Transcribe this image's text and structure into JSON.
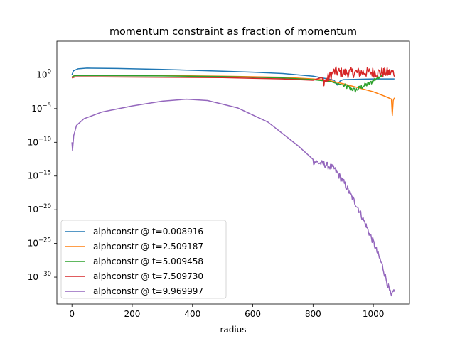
{
  "chart_data": {
    "type": "line",
    "title": "momentum constraint as fraction of momentum",
    "xlabel": "radius",
    "ylabel": "",
    "xlim": [
      -50,
      1120
    ],
    "ylim_log10": [
      -34,
      5
    ],
    "yscale": "log",
    "grid": false,
    "legend_position": "lower-left",
    "x_ticks": [
      {
        "value": 0,
        "label": "0"
      },
      {
        "value": 200,
        "label": "200"
      },
      {
        "value": 400,
        "label": "400"
      },
      {
        "value": 600,
        "label": "600"
      },
      {
        "value": 800,
        "label": "800"
      },
      {
        "value": 1000,
        "label": "1000"
      }
    ],
    "y_ticks": [
      {
        "exp": 0,
        "base": "10",
        "sup": "0"
      },
      {
        "exp": -5,
        "base": "10",
        "sup": "−5"
      },
      {
        "exp": -10,
        "base": "10",
        "sup": "−10"
      },
      {
        "exp": -15,
        "base": "10",
        "sup": "−15"
      },
      {
        "exp": -20,
        "base": "10",
        "sup": "−20"
      },
      {
        "exp": -25,
        "base": "10",
        "sup": "−25"
      },
      {
        "exp": -30,
        "base": "10",
        "sup": "−30"
      }
    ],
    "series": [
      {
        "name": "alphconstr @ t=0.008916",
        "color": "#1f77b4",
        "points_log10": [
          [
            0,
            0.0
          ],
          [
            5,
            0.6
          ],
          [
            20,
            0.9
          ],
          [
            50,
            1.0
          ],
          [
            150,
            0.95
          ],
          [
            300,
            0.8
          ],
          [
            500,
            0.55
          ],
          [
            600,
            0.4
          ],
          [
            700,
            0.2
          ],
          [
            800,
            -0.2
          ],
          [
            850,
            -0.6
          ],
          [
            870,
            -0.8
          ],
          [
            880,
            -1.5
          ],
          [
            890,
            -0.9
          ],
          [
            900,
            -0.7
          ],
          [
            1000,
            -0.6
          ],
          [
            1070,
            -0.6
          ]
        ],
        "noise": []
      },
      {
        "name": "alphconstr @ t=2.509187",
        "color": "#ff7f0e",
        "points_log10": [
          [
            0,
            -0.3
          ],
          [
            10,
            -0.05
          ],
          [
            100,
            -0.05
          ],
          [
            300,
            -0.1
          ],
          [
            500,
            -0.2
          ],
          [
            700,
            -0.35
          ],
          [
            800,
            -0.6
          ],
          [
            850,
            -0.8
          ],
          [
            900,
            -1.3
          ],
          [
            950,
            -1.9
          ],
          [
            1000,
            -2.5
          ],
          [
            1040,
            -3.2
          ],
          [
            1060,
            -3.6
          ],
          [
            1063,
            -6.0
          ],
          [
            1066,
            -3.8
          ],
          [
            1070,
            -3.4
          ]
        ],
        "noise": []
      },
      {
        "name": "alphconstr @ t=5.009458",
        "color": "#2ca02c",
        "points_log10": [
          [
            0,
            -0.3
          ],
          [
            10,
            -0.1
          ],
          [
            100,
            -0.1
          ],
          [
            300,
            -0.15
          ],
          [
            500,
            -0.25
          ],
          [
            700,
            -0.45
          ],
          [
            800,
            -0.7
          ],
          [
            860,
            -1.0
          ],
          [
            880,
            -1.3
          ],
          [
            920,
            -1.9
          ],
          [
            940,
            -2.3
          ],
          [
            960,
            -1.8
          ],
          [
            990,
            -1.2
          ],
          [
            1010,
            -0.5
          ],
          [
            1030,
            0.2
          ],
          [
            1040,
            0.3
          ]
        ],
        "noise": [
          [
            900,
            1040,
            0.35
          ]
        ]
      },
      {
        "name": "alphconstr @ t=7.509730",
        "color": "#d62728",
        "points_log10": [
          [
            0,
            -0.45
          ],
          [
            10,
            -0.3
          ],
          [
            100,
            -0.3
          ],
          [
            300,
            -0.35
          ],
          [
            500,
            -0.4
          ],
          [
            600,
            -0.5
          ],
          [
            700,
            -0.6
          ],
          [
            800,
            -0.8
          ],
          [
            840,
            -0.9
          ],
          [
            850,
            -0.5
          ],
          [
            870,
            0.5
          ],
          [
            900,
            0.3
          ],
          [
            1000,
            0.4
          ],
          [
            1070,
            0.3
          ]
        ],
        "noise": [
          [
            830,
            1070,
            0.75
          ]
        ]
      },
      {
        "name": "alphconstr @ t=9.969997",
        "color": "#9467bd",
        "points_log10": [
          [
            0,
            -10.0
          ],
          [
            2,
            -11.2
          ],
          [
            6,
            -9.0
          ],
          [
            15,
            -7.5
          ],
          [
            40,
            -6.5
          ],
          [
            100,
            -5.5
          ],
          [
            200,
            -4.6
          ],
          [
            300,
            -3.9
          ],
          [
            380,
            -3.6
          ],
          [
            450,
            -3.8
          ],
          [
            550,
            -4.9
          ],
          [
            650,
            -7.0
          ],
          [
            750,
            -10.5
          ],
          [
            800,
            -12.8
          ],
          [
            840,
            -13.3
          ],
          [
            870,
            -13.9
          ],
          [
            900,
            -15.8
          ],
          [
            950,
            -19.8
          ],
          [
            1000,
            -24.8
          ],
          [
            1030,
            -28.3
          ],
          [
            1050,
            -31.5
          ],
          [
            1060,
            -33.0
          ],
          [
            1070,
            -31.8
          ]
        ],
        "noise": [
          [
            800,
            1070,
            0.5
          ]
        ]
      }
    ]
  }
}
